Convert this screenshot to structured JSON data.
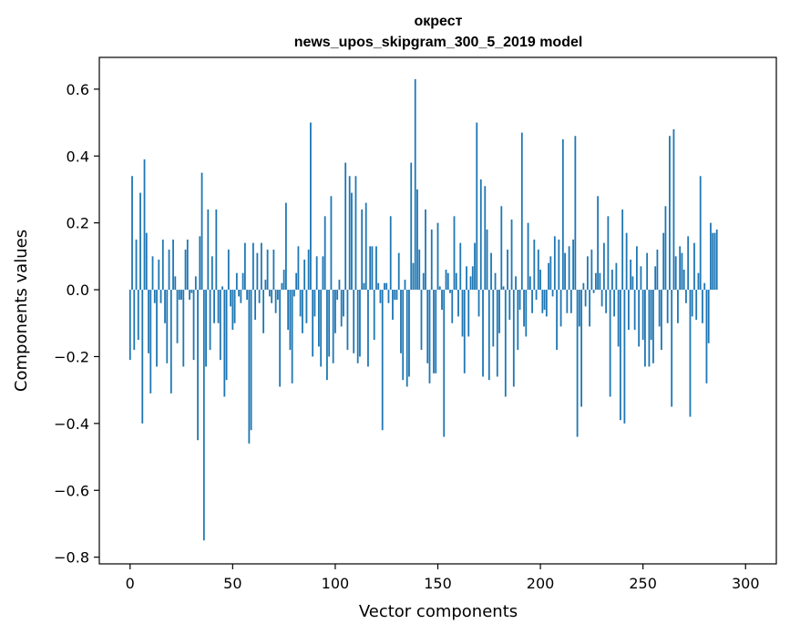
{
  "chart_data": {
    "type": "bar",
    "title_line1": "окрест",
    "title_line2": "news_upos_skipgram_300_5_2019 model",
    "xlabel": "Vector components",
    "ylabel": "Components values",
    "xlim": [
      -15,
      315
    ],
    "ylim": [
      -0.82,
      0.695
    ],
    "xticks": [
      0,
      50,
      100,
      150,
      200,
      250,
      300
    ],
    "xtick_labels": [
      "0",
      "50",
      "100",
      "150",
      "200",
      "250",
      "300"
    ],
    "yticks": [
      -0.8,
      -0.6,
      -0.4,
      -0.2,
      0.0,
      0.2,
      0.4,
      0.6
    ],
    "ytick_labels": [
      "−0.8",
      "−0.6",
      "−0.4",
      "−0.2",
      "0.0",
      "0.2",
      "0.4",
      "0.6"
    ],
    "bar_color": "#1f77b4",
    "grid": false,
    "values": [
      -0.21,
      0.34,
      -0.18,
      0.15,
      -0.15,
      0.29,
      -0.4,
      0.39,
      0.17,
      -0.19,
      -0.31,
      0.1,
      -0.04,
      -0.23,
      0.09,
      -0.04,
      0.15,
      -0.1,
      -0.22,
      0.12,
      -0.31,
      0.15,
      0.04,
      -0.16,
      -0.03,
      -0.03,
      -0.23,
      0.12,
      0.15,
      -0.03,
      -0.01,
      -0.21,
      0.04,
      -0.45,
      0.16,
      0.35,
      -0.75,
      -0.23,
      0.24,
      -0.18,
      0.1,
      -0.1,
      0.24,
      -0.1,
      -0.21,
      0.01,
      -0.32,
      -0.27,
      0.12,
      -0.05,
      -0.12,
      -0.1,
      0.05,
      -0.02,
      -0.04,
      0.05,
      0.14,
      -0.03,
      -0.46,
      -0.42,
      0.14,
      -0.09,
      0.11,
      -0.04,
      0.14,
      -0.13,
      0.03,
      0.12,
      -0.02,
      -0.04,
      0.12,
      -0.07,
      -0.03,
      -0.29,
      0.02,
      0.06,
      0.26,
      -0.12,
      -0.18,
      -0.28,
      -0.02,
      0.05,
      0.13,
      -0.08,
      -0.13,
      0.09,
      -0.1,
      0.12,
      0.5,
      -0.2,
      -0.08,
      0.1,
      -0.17,
      -0.23,
      0.1,
      0.22,
      -0.27,
      -0.2,
      0.28,
      -0.22,
      -0.13,
      -0.03,
      0.03,
      -0.11,
      -0.08,
      0.38,
      -0.18,
      0.34,
      0.29,
      -0.19,
      0.34,
      -0.22,
      -0.2,
      0.24,
      0.02,
      0.26,
      -0.23,
      0.13,
      0.13,
      -0.15,
      0.13,
      0.02,
      -0.04,
      -0.42,
      0.02,
      0.02,
      -0.04,
      0.22,
      -0.09,
      -0.03,
      -0.03,
      0.11,
      -0.19,
      -0.27,
      0.03,
      -0.29,
      -0.26,
      0.38,
      0.08,
      0.63,
      0.3,
      0.12,
      -0.18,
      0.05,
      0.24,
      -0.22,
      -0.28,
      0.18,
      -0.25,
      -0.25,
      0.2,
      0.01,
      -0.06,
      -0.44,
      0.06,
      0.05,
      -0.01,
      -0.1,
      0.22,
      0.05,
      -0.08,
      0.14,
      -0.14,
      -0.25,
      0.07,
      -0.14,
      0.04,
      0.07,
      0.14,
      0.5,
      -0.08,
      0.33,
      -0.26,
      0.31,
      0.18,
      -0.27,
      0.11,
      -0.17,
      0.05,
      -0.26,
      -0.13,
      0.25,
      0.01,
      -0.32,
      0.12,
      -0.09,
      0.21,
      -0.29,
      0.04,
      -0.18,
      -0.06,
      0.47,
      -0.11,
      -0.14,
      0.2,
      0.04,
      -0.07,
      0.15,
      -0.03,
      0.12,
      0.06,
      -0.07,
      -0.06,
      -0.08,
      0.08,
      0.1,
      -0.02,
      0.16,
      -0.18,
      0.15,
      -0.11,
      0.45,
      0.11,
      -0.07,
      0.13,
      -0.07,
      0.15,
      0.46,
      -0.44,
      -0.11,
      -0.35,
      0.02,
      -0.05,
      0.1,
      -0.11,
      0.12,
      -0.01,
      0.05,
      0.28,
      0.05,
      -0.05,
      0.14,
      -0.07,
      0.22,
      -0.32,
      0.06,
      -0.08,
      0.08,
      -0.17,
      -0.39,
      0.24,
      -0.4,
      0.17,
      -0.12,
      0.09,
      0.04,
      -0.12,
      0.13,
      -0.17,
      0.07,
      -0.15,
      -0.23,
      0.11,
      -0.23,
      -0.15,
      -0.22,
      0.07,
      0.12,
      -0.11,
      -0.18,
      0.17,
      0.25,
      -0.1,
      0.46,
      -0.35,
      0.48,
      0.1,
      -0.1,
      0.13,
      0.11,
      0.06,
      -0.04,
      0.16,
      -0.38,
      -0.08,
      0.14,
      -0.09,
      0.05,
      0.34,
      -0.1,
      0.02,
      -0.28,
      -0.16,
      0.2,
      0.17,
      0.17,
      0.18
    ]
  }
}
